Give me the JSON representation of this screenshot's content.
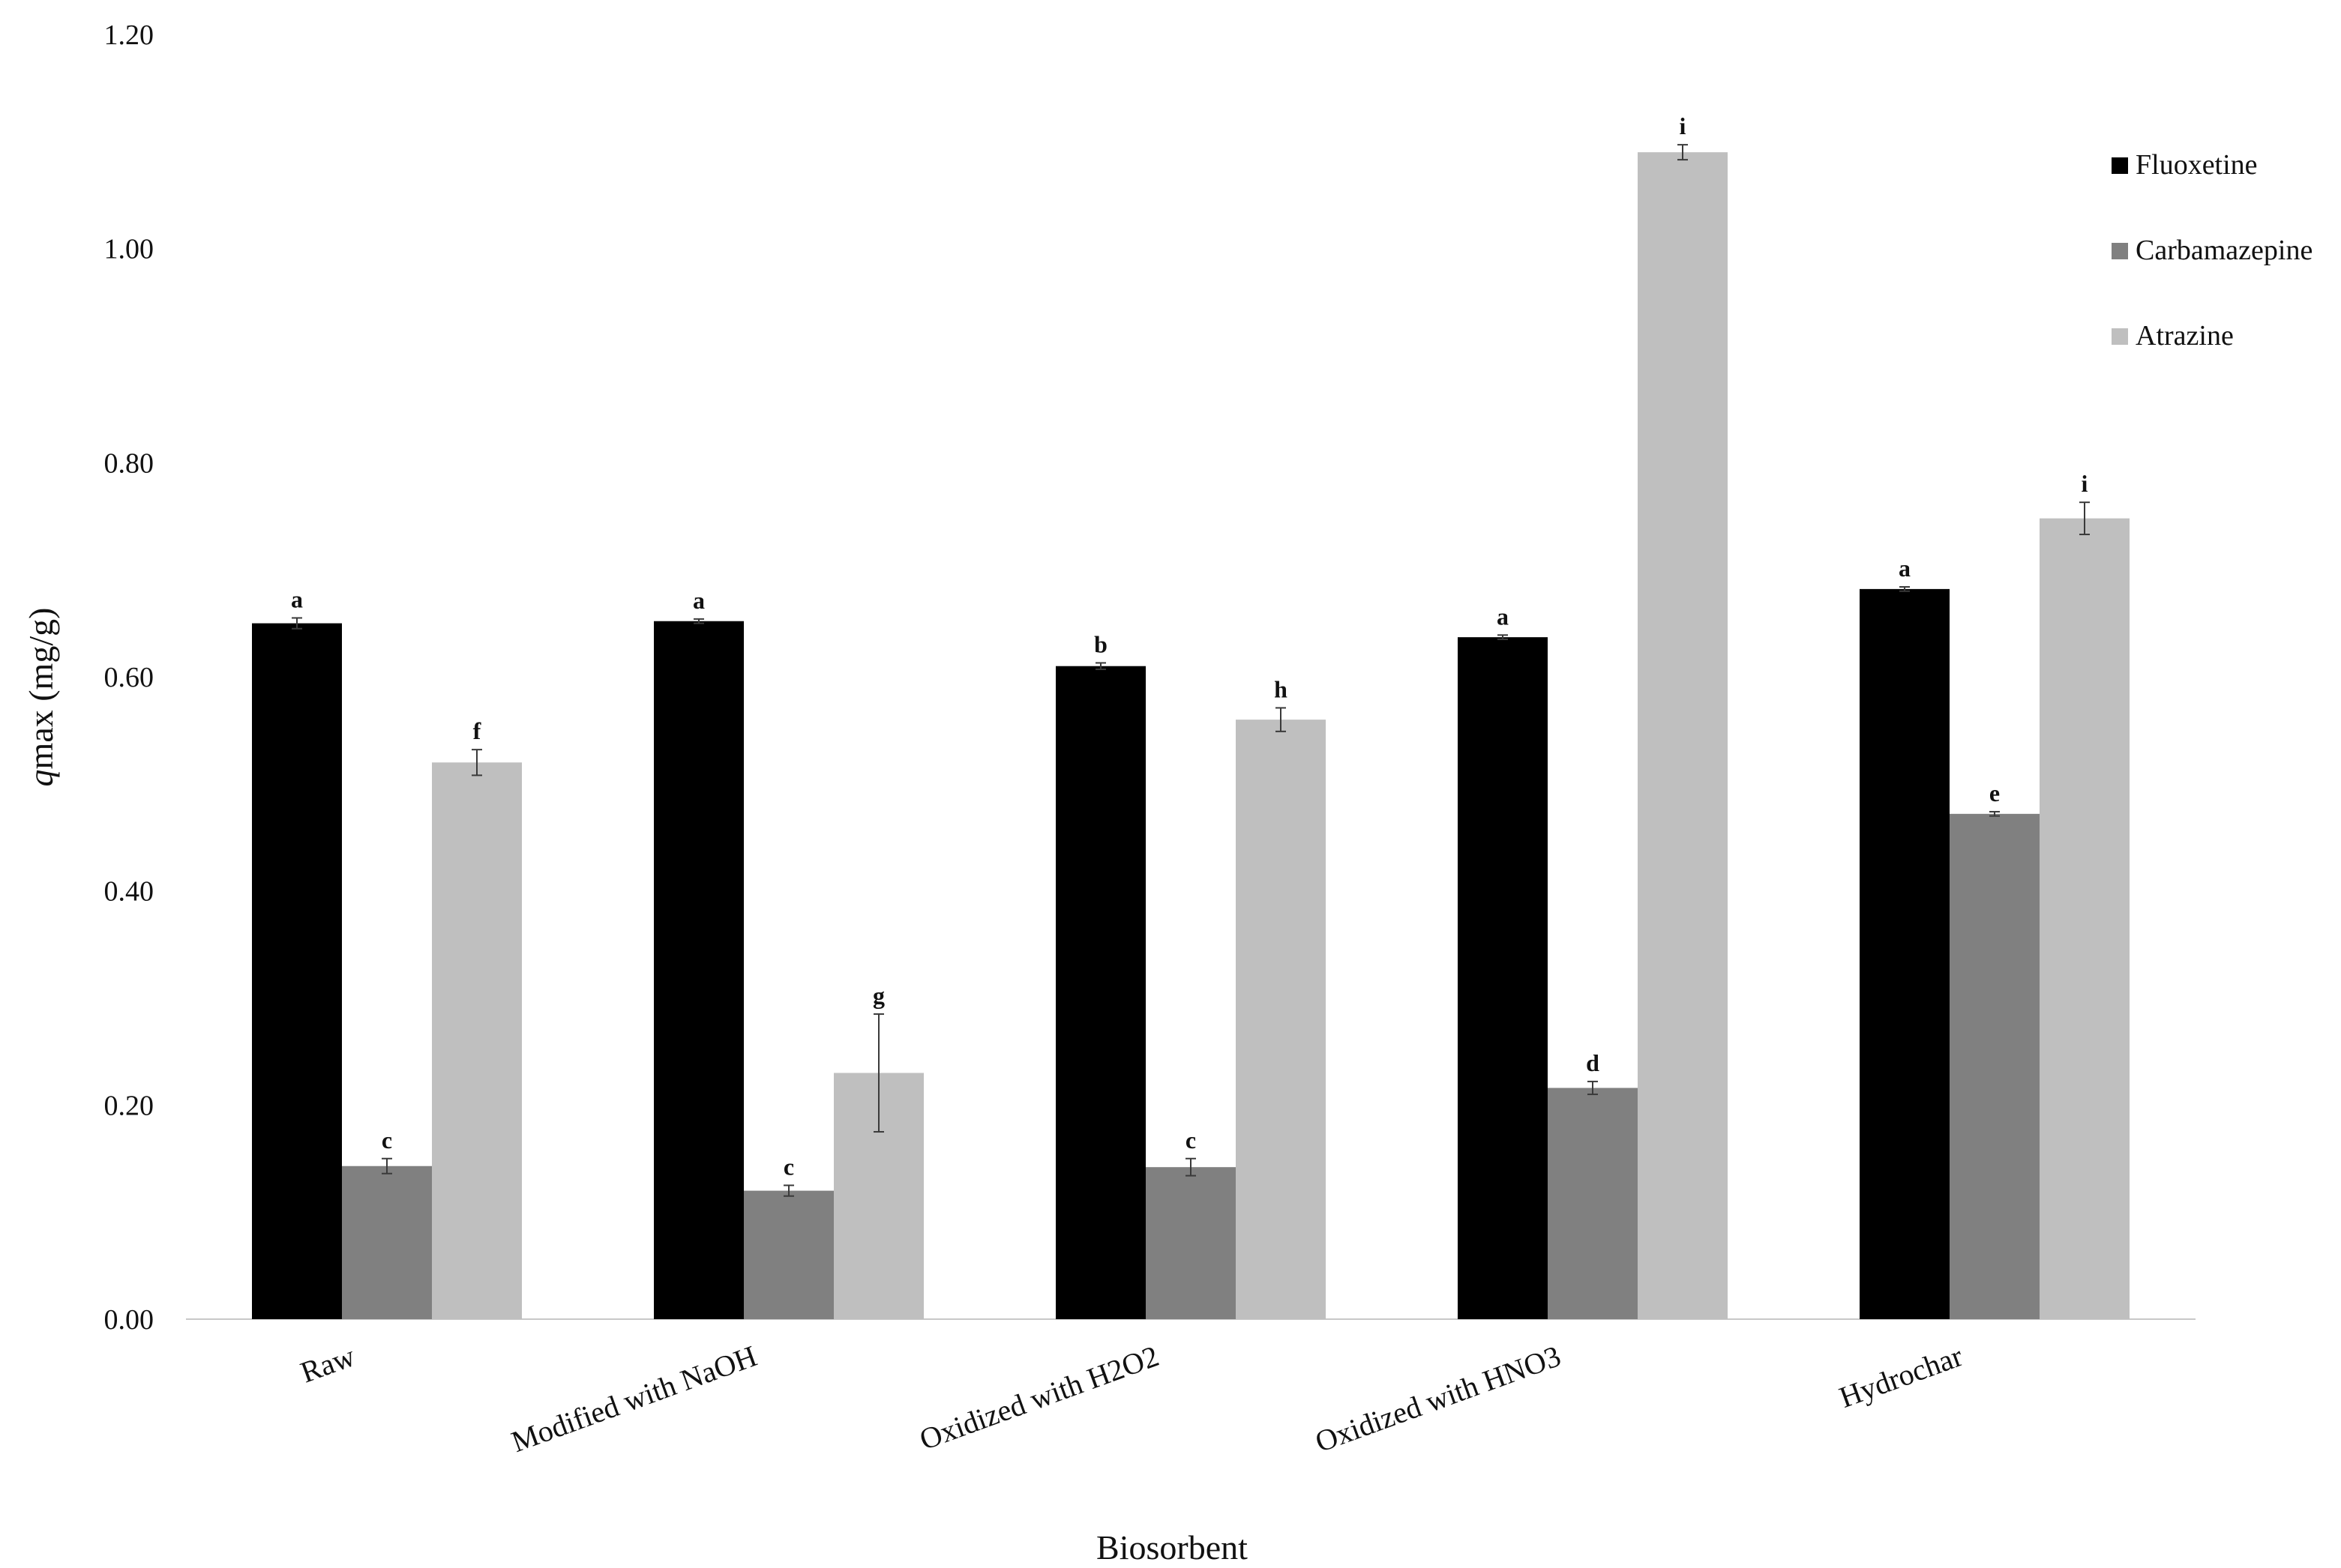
{
  "chart_data": {
    "type": "bar",
    "title": "",
    "xlabel": "Biosorbent",
    "ylabel": "qmax (mg/g)",
    "ylabel_italic_part": "q",
    "ylabel_rest": "max (mg/g)",
    "ylim": [
      0,
      1.2
    ],
    "yticks": [
      "0.00",
      "0.20",
      "0.40",
      "0.60",
      "0.80",
      "1.00",
      "1.20"
    ],
    "ytick_values": [
      0,
      0.2,
      0.4,
      0.6,
      0.8,
      1.0,
      1.2
    ],
    "grid": false,
    "legend_position": "top-right",
    "categories": [
      "Raw",
      "Modified with NaOH",
      "Oxidized with H2O2",
      "Oxidized with HNO3",
      "Hydrochar"
    ],
    "series": [
      {
        "name": "Fluoxetine",
        "color": "#000000",
        "values": [
          0.65,
          0.652,
          0.61,
          0.637,
          0.682
        ],
        "errors": [
          0.005,
          0.002,
          0.003,
          0.002,
          0.002
        ],
        "labels": [
          "a",
          "a",
          "b",
          "a",
          "a"
        ]
      },
      {
        "name": "Carbamazepine",
        "color": "#808080",
        "values": [
          0.143,
          0.12,
          0.142,
          0.216,
          0.472
        ],
        "errors": [
          0.007,
          0.005,
          0.008,
          0.006,
          0.002
        ],
        "labels": [
          "c",
          "c",
          "c",
          "d",
          "e"
        ]
      },
      {
        "name": "Atrazine",
        "color": "#bfbfbf",
        "values": [
          0.52,
          0.23,
          0.56,
          1.09,
          0.748
        ],
        "errors": [
          0.012,
          0.055,
          0.011,
          0.007,
          0.015
        ],
        "labels": [
          "f",
          "g",
          "h",
          "i",
          "i"
        ]
      }
    ]
  }
}
